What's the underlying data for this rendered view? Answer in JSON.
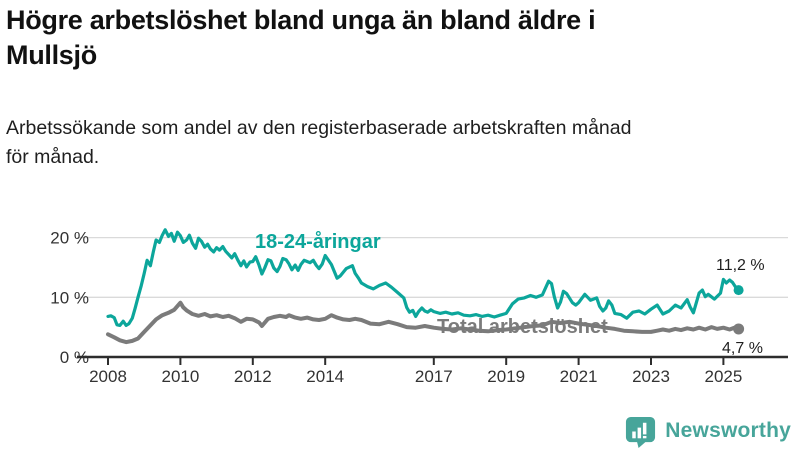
{
  "title": {
    "line1": "Högre arbetslöshet bland unga än bland äldre i",
    "line2": "Mullsjö"
  },
  "subtitle": {
    "line1": "Arbetssökande som andel av den registerbaserade arbetskraften månad",
    "line2": "för månad."
  },
  "footer": {
    "brand": "Newsworthy",
    "logo_icon": "bar-chart-speech-bubble-icon"
  },
  "colors": {
    "young": "#0ca69b",
    "total": "#7b7b7b",
    "grid": "#dadada",
    "axis": "#2d2d2d",
    "tick_text": "#333333",
    "value_text": "#1f1f1f",
    "logo": "#47a59a"
  },
  "chart_data": {
    "type": "line",
    "unit": "%",
    "grid": "horizontal-only",
    "legend_position": "inline-labels-on-lines",
    "xlim": [
      2007.15,
      2026.8
    ],
    "ylim": [
      0,
      22
    ],
    "x_ticks": [
      {
        "v": 2008,
        "label": "2008"
      },
      {
        "v": 2010,
        "label": "2010"
      },
      {
        "v": 2012,
        "label": "2012"
      },
      {
        "v": 2014,
        "label": "2014"
      },
      {
        "v": 2017,
        "label": "2017"
      },
      {
        "v": 2019,
        "label": "2019"
      },
      {
        "v": 2021,
        "label": "2021"
      },
      {
        "v": 2023,
        "label": "2023"
      },
      {
        "v": 2025,
        "label": "2025"
      }
    ],
    "y_ticks": [
      {
        "v": 0,
        "label": "0 %"
      },
      {
        "v": 10,
        "label": "10 %"
      },
      {
        "v": 20,
        "label": "20 %"
      }
    ],
    "series": [
      {
        "name": "18-24-åringar",
        "color_key": "young",
        "end_label": "11,2 %",
        "last_value": 11.2,
        "points": [
          [
            2008.0,
            6.8
          ],
          [
            2008.08,
            6.9
          ],
          [
            2008.17,
            6.6
          ],
          [
            2008.25,
            5.4
          ],
          [
            2008.33,
            5.3
          ],
          [
            2008.42,
            6.0
          ],
          [
            2008.5,
            5.3
          ],
          [
            2008.58,
            5.6
          ],
          [
            2008.67,
            6.5
          ],
          [
            2008.75,
            8.2
          ],
          [
            2008.83,
            10.0
          ],
          [
            2008.92,
            12.0
          ],
          [
            2009.0,
            14.0
          ],
          [
            2009.08,
            16.2
          ],
          [
            2009.17,
            15.3
          ],
          [
            2009.25,
            17.6
          ],
          [
            2009.33,
            19.6
          ],
          [
            2009.42,
            19.2
          ],
          [
            2009.5,
            20.4
          ],
          [
            2009.58,
            21.3
          ],
          [
            2009.67,
            20.2
          ],
          [
            2009.75,
            20.7
          ],
          [
            2009.83,
            19.4
          ],
          [
            2009.92,
            20.9
          ],
          [
            2010.0,
            20.3
          ],
          [
            2010.08,
            19.2
          ],
          [
            2010.17,
            19.6
          ],
          [
            2010.25,
            20.4
          ],
          [
            2010.33,
            19.1
          ],
          [
            2010.42,
            18.2
          ],
          [
            2010.5,
            19.9
          ],
          [
            2010.58,
            19.4
          ],
          [
            2010.67,
            18.4
          ],
          [
            2010.75,
            18.9
          ],
          [
            2010.83,
            18.1
          ],
          [
            2010.92,
            17.6
          ],
          [
            2011.0,
            18.3
          ],
          [
            2011.08,
            17.9
          ],
          [
            2011.17,
            18.5
          ],
          [
            2011.25,
            17.7
          ],
          [
            2011.33,
            17.2
          ],
          [
            2011.42,
            16.6
          ],
          [
            2011.5,
            17.3
          ],
          [
            2011.58,
            16.3
          ],
          [
            2011.67,
            15.3
          ],
          [
            2011.75,
            16.1
          ],
          [
            2011.83,
            15.1
          ],
          [
            2011.92,
            15.9
          ],
          [
            2012.0,
            16.0
          ],
          [
            2012.08,
            16.8
          ],
          [
            2012.17,
            15.4
          ],
          [
            2012.25,
            13.9
          ],
          [
            2012.33,
            14.9
          ],
          [
            2012.42,
            16.3
          ],
          [
            2012.5,
            16.1
          ],
          [
            2012.58,
            14.9
          ],
          [
            2012.67,
            14.3
          ],
          [
            2012.75,
            15.2
          ],
          [
            2012.83,
            16.5
          ],
          [
            2012.92,
            16.3
          ],
          [
            2013.0,
            15.6
          ],
          [
            2013.08,
            14.6
          ],
          [
            2013.17,
            15.4
          ],
          [
            2013.25,
            14.5
          ],
          [
            2013.33,
            15.5
          ],
          [
            2013.42,
            16.2
          ],
          [
            2013.5,
            16.0
          ],
          [
            2013.58,
            15.8
          ],
          [
            2013.67,
            16.2
          ],
          [
            2013.75,
            15.4
          ],
          [
            2013.83,
            14.8
          ],
          [
            2013.92,
            15.6
          ],
          [
            2014.0,
            17.0
          ],
          [
            2014.17,
            15.5
          ],
          [
            2014.33,
            13.2
          ],
          [
            2014.42,
            13.6
          ],
          [
            2014.58,
            14.8
          ],
          [
            2014.75,
            15.3
          ],
          [
            2014.83,
            14.0
          ],
          [
            2014.92,
            13.2
          ],
          [
            2015.0,
            12.4
          ],
          [
            2015.17,
            11.8
          ],
          [
            2015.33,
            11.4
          ],
          [
            2015.5,
            12.0
          ],
          [
            2015.67,
            12.4
          ],
          [
            2015.83,
            11.7
          ],
          [
            2016.0,
            10.8
          ],
          [
            2016.17,
            9.9
          ],
          [
            2016.25,
            8.3
          ],
          [
            2016.33,
            7.5
          ],
          [
            2016.42,
            7.8
          ],
          [
            2016.5,
            6.8
          ],
          [
            2016.58,
            7.6
          ],
          [
            2016.67,
            8.2
          ],
          [
            2016.75,
            7.7
          ],
          [
            2016.83,
            7.5
          ],
          [
            2016.92,
            7.9
          ],
          [
            2017.0,
            7.6
          ],
          [
            2017.17,
            7.3
          ],
          [
            2017.33,
            7.5
          ],
          [
            2017.5,
            7.2
          ],
          [
            2017.67,
            7.4
          ],
          [
            2017.83,
            7.0
          ],
          [
            2018.0,
            6.9
          ],
          [
            2018.17,
            7.1
          ],
          [
            2018.33,
            6.8
          ],
          [
            2018.5,
            7.0
          ],
          [
            2018.67,
            6.7
          ],
          [
            2018.83,
            7.0
          ],
          [
            2019.0,
            7.3
          ],
          [
            2019.17,
            8.9
          ],
          [
            2019.33,
            9.7
          ],
          [
            2019.5,
            9.9
          ],
          [
            2019.67,
            10.3
          ],
          [
            2019.83,
            10.0
          ],
          [
            2020.0,
            10.4
          ],
          [
            2020.17,
            12.7
          ],
          [
            2020.25,
            12.3
          ],
          [
            2020.33,
            10.1
          ],
          [
            2020.42,
            8.2
          ],
          [
            2020.5,
            9.2
          ],
          [
            2020.58,
            11.0
          ],
          [
            2020.67,
            10.6
          ],
          [
            2020.83,
            9.1
          ],
          [
            2020.92,
            8.7
          ],
          [
            2021.0,
            9.1
          ],
          [
            2021.17,
            10.5
          ],
          [
            2021.25,
            10.0
          ],
          [
            2021.33,
            9.5
          ],
          [
            2021.5,
            9.9
          ],
          [
            2021.58,
            8.5
          ],
          [
            2021.67,
            7.7
          ],
          [
            2021.75,
            8.2
          ],
          [
            2021.83,
            9.4
          ],
          [
            2021.92,
            8.7
          ],
          [
            2022.0,
            7.3
          ],
          [
            2022.17,
            7.1
          ],
          [
            2022.33,
            6.5
          ],
          [
            2022.5,
            7.5
          ],
          [
            2022.67,
            7.7
          ],
          [
            2022.83,
            7.2
          ],
          [
            2023.0,
            8.0
          ],
          [
            2023.17,
            8.7
          ],
          [
            2023.33,
            7.2
          ],
          [
            2023.5,
            7.7
          ],
          [
            2023.67,
            8.7
          ],
          [
            2023.83,
            8.2
          ],
          [
            2024.0,
            9.6
          ],
          [
            2024.08,
            8.4
          ],
          [
            2024.17,
            7.4
          ],
          [
            2024.33,
            10.7
          ],
          [
            2024.42,
            11.2
          ],
          [
            2024.5,
            10.1
          ],
          [
            2024.58,
            10.5
          ],
          [
            2024.75,
            9.7
          ],
          [
            2024.92,
            10.7
          ],
          [
            2025.0,
            13.0
          ],
          [
            2025.08,
            12.4
          ],
          [
            2025.17,
            12.9
          ],
          [
            2025.25,
            12.5
          ],
          [
            2025.33,
            11.8
          ],
          [
            2025.42,
            11.2
          ]
        ]
      },
      {
        "name": "Total arbetslöshet",
        "color_key": "total",
        "end_label": "4,7 %",
        "last_value": 4.7,
        "points": [
          [
            2008.0,
            3.8
          ],
          [
            2008.17,
            3.3
          ],
          [
            2008.33,
            2.8
          ],
          [
            2008.5,
            2.5
          ],
          [
            2008.67,
            2.7
          ],
          [
            2008.83,
            3.1
          ],
          [
            2009.0,
            4.2
          ],
          [
            2009.17,
            5.3
          ],
          [
            2009.33,
            6.3
          ],
          [
            2009.5,
            7.0
          ],
          [
            2009.67,
            7.4
          ],
          [
            2009.83,
            7.9
          ],
          [
            2010.0,
            9.1
          ],
          [
            2010.08,
            8.3
          ],
          [
            2010.17,
            7.8
          ],
          [
            2010.25,
            7.5
          ],
          [
            2010.33,
            7.2
          ],
          [
            2010.5,
            6.9
          ],
          [
            2010.67,
            7.2
          ],
          [
            2010.83,
            6.8
          ],
          [
            2011.0,
            7.0
          ],
          [
            2011.17,
            6.7
          ],
          [
            2011.33,
            6.9
          ],
          [
            2011.5,
            6.5
          ],
          [
            2011.67,
            5.9
          ],
          [
            2011.83,
            6.4
          ],
          [
            2012.0,
            6.3
          ],
          [
            2012.17,
            5.8
          ],
          [
            2012.25,
            5.2
          ],
          [
            2012.42,
            6.4
          ],
          [
            2012.58,
            6.7
          ],
          [
            2012.75,
            6.9
          ],
          [
            2012.92,
            6.7
          ],
          [
            2013.0,
            7.0
          ],
          [
            2013.17,
            6.6
          ],
          [
            2013.33,
            6.4
          ],
          [
            2013.5,
            6.6
          ],
          [
            2013.67,
            6.3
          ],
          [
            2013.83,
            6.2
          ],
          [
            2014.0,
            6.4
          ],
          [
            2014.17,
            7.0
          ],
          [
            2014.33,
            6.6
          ],
          [
            2014.5,
            6.3
          ],
          [
            2014.67,
            6.2
          ],
          [
            2014.83,
            6.4
          ],
          [
            2015.0,
            6.2
          ],
          [
            2015.25,
            5.6
          ],
          [
            2015.5,
            5.5
          ],
          [
            2015.75,
            5.9
          ],
          [
            2016.0,
            5.5
          ],
          [
            2016.25,
            5.0
          ],
          [
            2016.5,
            4.9
          ],
          [
            2016.75,
            5.2
          ],
          [
            2017.0,
            4.9
          ],
          [
            2017.25,
            4.7
          ],
          [
            2017.5,
            4.6
          ],
          [
            2017.75,
            4.8
          ],
          [
            2018.0,
            4.6
          ],
          [
            2018.25,
            4.4
          ],
          [
            2018.5,
            4.3
          ],
          [
            2018.75,
            4.5
          ],
          [
            2019.0,
            4.6
          ],
          [
            2019.25,
            4.8
          ],
          [
            2019.5,
            5.0
          ],
          [
            2019.75,
            5.2
          ],
          [
            2020.0,
            5.3
          ],
          [
            2020.25,
            5.9
          ],
          [
            2020.5,
            5.7
          ],
          [
            2020.75,
            5.9
          ],
          [
            2021.0,
            5.6
          ],
          [
            2021.25,
            5.4
          ],
          [
            2021.5,
            5.2
          ],
          [
            2021.75,
            4.9
          ],
          [
            2022.0,
            4.7
          ],
          [
            2022.25,
            4.4
          ],
          [
            2022.5,
            4.3
          ],
          [
            2022.75,
            4.2
          ],
          [
            2023.0,
            4.2
          ],
          [
            2023.17,
            4.4
          ],
          [
            2023.33,
            4.6
          ],
          [
            2023.5,
            4.4
          ],
          [
            2023.67,
            4.7
          ],
          [
            2023.83,
            4.5
          ],
          [
            2024.0,
            4.8
          ],
          [
            2024.17,
            4.6
          ],
          [
            2024.33,
            4.9
          ],
          [
            2024.5,
            4.6
          ],
          [
            2024.67,
            5.0
          ],
          [
            2024.83,
            4.7
          ],
          [
            2025.0,
            4.9
          ],
          [
            2025.17,
            4.6
          ],
          [
            2025.3,
            4.9
          ],
          [
            2025.42,
            4.7
          ]
        ]
      }
    ]
  }
}
